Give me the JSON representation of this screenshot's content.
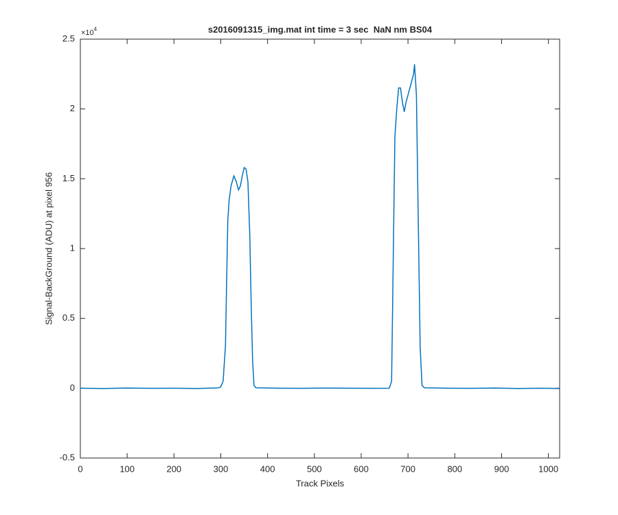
{
  "chart_data": {
    "type": "line",
    "title": "s2016091315_img.mat int time = 3 sec  NaN nm BS04",
    "x_label": "Track Pixels",
    "y_label": "Signal-BackGround (ADU) at pixel 956",
    "y_exponent_base": "×10",
    "y_exponent": "4",
    "color": "#0072bd",
    "xlim": [
      0,
      1024
    ],
    "ylim": [
      -0.5,
      2.5
    ],
    "xticks": [
      0,
      100,
      200,
      300,
      400,
      500,
      600,
      700,
      800,
      900,
      1000
    ],
    "yticks": [
      -0.5,
      0,
      0.5,
      1,
      1.5,
      2,
      2.5
    ],
    "x": [
      0,
      50,
      100,
      150,
      200,
      250,
      295,
      300,
      305,
      310,
      315,
      318,
      322,
      328,
      333,
      338,
      342,
      346,
      350,
      354,
      358,
      362,
      365,
      368,
      371,
      375,
      425,
      475,
      525,
      575,
      625,
      660,
      665,
      668,
      672,
      676,
      680,
      684,
      688,
      692,
      696,
      700,
      704,
      708,
      712,
      714,
      718,
      722,
      726,
      730,
      735,
      785,
      835,
      885,
      935,
      985,
      1023
    ],
    "values": [
      0.0,
      -0.002,
      0.001,
      -0.001,
      0.0,
      -0.002,
      0.002,
      0.01,
      0.05,
      0.3,
      1.2,
      1.35,
      1.45,
      1.52,
      1.48,
      1.42,
      1.45,
      1.52,
      1.58,
      1.57,
      1.48,
      1.1,
      0.6,
      0.2,
      0.02,
      0.003,
      0.0,
      -0.001,
      0.001,
      0.0,
      -0.001,
      0.0,
      0.05,
      0.8,
      1.8,
      2.0,
      2.15,
      2.15,
      2.05,
      1.98,
      2.05,
      2.1,
      2.15,
      2.2,
      2.25,
      2.32,
      2.1,
      1.2,
      0.3,
      0.02,
      0.003,
      0.0,
      -0.001,
      0.001,
      -0.002,
      0.0,
      -0.002
    ]
  }
}
